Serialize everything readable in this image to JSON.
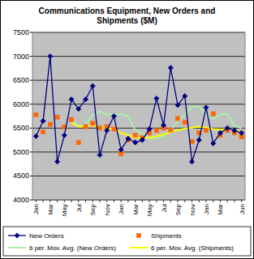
{
  "chart_data": {
    "type": "line",
    "title": "Communications Equipment, New Orders and Shipments ($M)",
    "categories": [
      "Jan",
      null,
      "Mar",
      null,
      "May",
      null,
      "Jul",
      null,
      "Sep",
      null,
      "Nov",
      null,
      "Jan",
      null,
      "Mar",
      null,
      "May",
      null,
      "Jul",
      null,
      "Sep",
      null,
      "Nov",
      null,
      "Jan",
      null,
      "Mar",
      null,
      null,
      "Jun"
    ],
    "series": [
      {
        "name": "New Orders",
        "color": "#000080",
        "type": "line",
        "marker": "diamond",
        "line_style": "solid",
        "values": [
          5330,
          5650,
          7000,
          4800,
          5350,
          6100,
          5900,
          6100,
          6380,
          4940,
          5450,
          5750,
          5050,
          5280,
          5200,
          5250,
          5480,
          6120,
          5560,
          6760,
          5980,
          6170,
          4800,
          5250,
          5930,
          5180,
          5400,
          5500,
          5450,
          5400
        ]
      },
      {
        "name": "Shipments",
        "color": "#ff6600",
        "type": "line",
        "marker": "square",
        "line_style": "none",
        "values": [
          5780,
          5420,
          5580,
          5730,
          5520,
          5680,
          5200,
          5530,
          5600,
          5500,
          5530,
          5480,
          4960,
          5250,
          5350,
          5300,
          5400,
          5450,
          5500,
          5460,
          5700,
          5620,
          5220,
          5400,
          5450,
          5800,
          5350,
          5450,
          5400,
          5320
        ]
      },
      {
        "name": "6 per. Mov. Avg. (New Orders)",
        "color": "#a6f0a6",
        "type": "line",
        "marker": "none",
        "line_style": "solid",
        "values": [
          null,
          null,
          null,
          null,
          null,
          5700,
          5530,
          5580,
          5770,
          5850,
          5780,
          5790,
          5790,
          5750,
          5460,
          5390,
          5280,
          5290,
          5330,
          5450,
          5640,
          5780,
          5950,
          5950,
          5780,
          5690,
          5780,
          5800,
          5550,
          5500
        ]
      },
      {
        "name": "6 per. Mov. Avg. (Shipments)",
        "color": "#ffff00",
        "type": "line",
        "marker": "none",
        "line_style": "solid",
        "values": [
          null,
          null,
          null,
          null,
          null,
          5620,
          5530,
          5540,
          5560,
          5510,
          5510,
          5470,
          5400,
          5350,
          5300,
          5300,
          5300,
          5330,
          5370,
          5410,
          5460,
          5490,
          5510,
          5530,
          5510,
          5480,
          5470,
          5480,
          5460,
          5420
        ]
      }
    ],
    "ylim": [
      4000,
      7500
    ],
    "yticks": [
      4000,
      4500,
      5000,
      5500,
      6000,
      6500,
      7000,
      7500
    ],
    "grid": true,
    "legend": "bottom"
  }
}
